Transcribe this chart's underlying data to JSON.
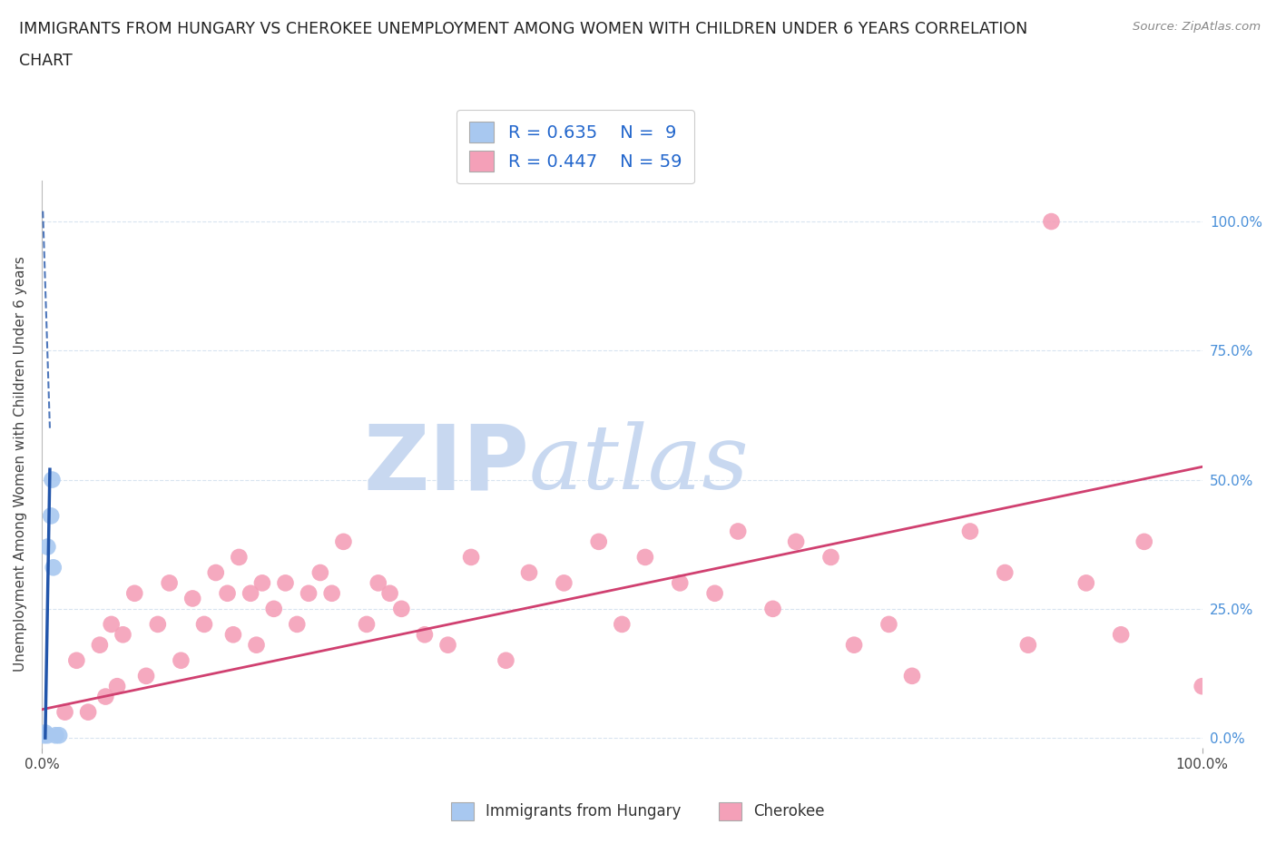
{
  "title_line1": "IMMIGRANTS FROM HUNGARY VS CHEROKEE UNEMPLOYMENT AMONG WOMEN WITH CHILDREN UNDER 6 YEARS CORRELATION",
  "title_line2": "CHART",
  "source": "Source: ZipAtlas.com",
  "ylabel": "Unemployment Among Women with Children Under 6 years",
  "r_hungary": 0.635,
  "n_hungary": 9,
  "r_cherokee": 0.447,
  "n_cherokee": 59,
  "hungary_color": "#a8c8f0",
  "cherokee_color": "#f4a0b8",
  "hungary_line_color": "#2255aa",
  "cherokee_line_color": "#d04070",
  "watermark_zip": "ZIP",
  "watermark_atlas": "atlas",
  "watermark_color": "#c8d8f0",
  "xlim": [
    0.0,
    1.0
  ],
  "ylim": [
    -0.02,
    1.08
  ],
  "ytick_labels": [
    "0.0%",
    "25.0%",
    "50.0%",
    "75.0%",
    "100.0%"
  ],
  "ytick_values": [
    0.0,
    0.25,
    0.5,
    0.75,
    1.0
  ],
  "xtick_labels": [
    "0.0%",
    "100.0%"
  ],
  "xtick_values": [
    0.0,
    1.0
  ],
  "background_color": "#ffffff",
  "grid_color": "#d8e4f0",
  "hungary_points_x": [
    0.002,
    0.003,
    0.005,
    0.005,
    0.008,
    0.009,
    0.01,
    0.012,
    0.015
  ],
  "hungary_points_y": [
    0.005,
    0.01,
    0.005,
    0.37,
    0.43,
    0.5,
    0.33,
    0.005,
    0.005
  ],
  "cherokee_points_x": [
    0.02,
    0.03,
    0.04,
    0.05,
    0.055,
    0.06,
    0.065,
    0.07,
    0.08,
    0.09,
    0.1,
    0.11,
    0.12,
    0.13,
    0.14,
    0.15,
    0.16,
    0.165,
    0.17,
    0.18,
    0.185,
    0.19,
    0.2,
    0.21,
    0.22,
    0.23,
    0.24,
    0.25,
    0.26,
    0.28,
    0.29,
    0.3,
    0.31,
    0.33,
    0.35,
    0.37,
    0.4,
    0.42,
    0.45,
    0.48,
    0.5,
    0.52,
    0.55,
    0.58,
    0.6,
    0.63,
    0.65,
    0.68,
    0.7,
    0.73,
    0.75,
    0.8,
    0.83,
    0.85,
    0.87,
    0.9,
    0.93,
    0.95,
    1.0
  ],
  "cherokee_points_y": [
    0.05,
    0.15,
    0.05,
    0.18,
    0.08,
    0.22,
    0.1,
    0.2,
    0.28,
    0.12,
    0.22,
    0.3,
    0.15,
    0.27,
    0.22,
    0.32,
    0.28,
    0.2,
    0.35,
    0.28,
    0.18,
    0.3,
    0.25,
    0.3,
    0.22,
    0.28,
    0.32,
    0.28,
    0.38,
    0.22,
    0.3,
    0.28,
    0.25,
    0.2,
    0.18,
    0.35,
    0.15,
    0.32,
    0.3,
    0.38,
    0.22,
    0.35,
    0.3,
    0.28,
    0.4,
    0.25,
    0.38,
    0.35,
    0.18,
    0.22,
    0.12,
    0.4,
    0.32,
    0.18,
    1.0,
    0.3,
    0.2,
    0.38,
    0.1
  ],
  "cherokee_line_x0": 0.0,
  "cherokee_line_y0": 0.055,
  "cherokee_line_x1": 1.0,
  "cherokee_line_y1": 0.525,
  "hungary_line_solid_x0": 0.005,
  "hungary_line_solid_y0": 0.0,
  "hungary_line_solid_x1": 0.005,
  "hungary_line_solid_y1": 0.52,
  "hungary_line_dash_x0": 0.005,
  "hungary_line_dash_y0": 0.6,
  "hungary_line_dash_x1": 0.008,
  "hungary_line_dash_y1": 1.05
}
